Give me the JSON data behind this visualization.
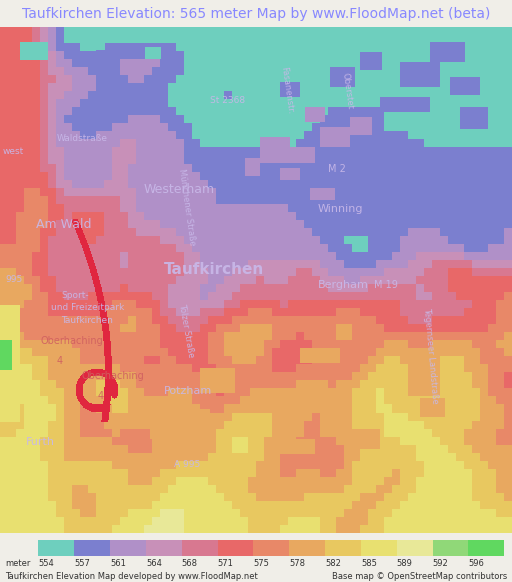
{
  "title": "Taufkirchen Elevation: 565 meter Map by www.FloodMap.net (beta)",
  "title_color": "#8888ff",
  "title_fontsize": 10,
  "background_color": "#f0eee8",
  "figsize": [
    5.12,
    5.82
  ],
  "dpi": 100,
  "colorbar_labels": [
    "554",
    "557",
    "561",
    "564",
    "568",
    "571",
    "575",
    "578",
    "582",
    "585",
    "589",
    "592",
    "596"
  ],
  "colorbar_colors": [
    "#6ecfbe",
    "#7b7fcf",
    "#b090c8",
    "#c890b8",
    "#d87890",
    "#e86868",
    "#e88868",
    "#e8a860",
    "#e8c860",
    "#e8e070",
    "#e8e898",
    "#90d878",
    "#60d860"
  ],
  "footer_left": "Taufkirchen Elevation Map developed by www.FloodMap.net",
  "footer_right": "Base map © OpenStreetMap contributors",
  "meter_label": "meter",
  "title_bg": "#ece9e0"
}
